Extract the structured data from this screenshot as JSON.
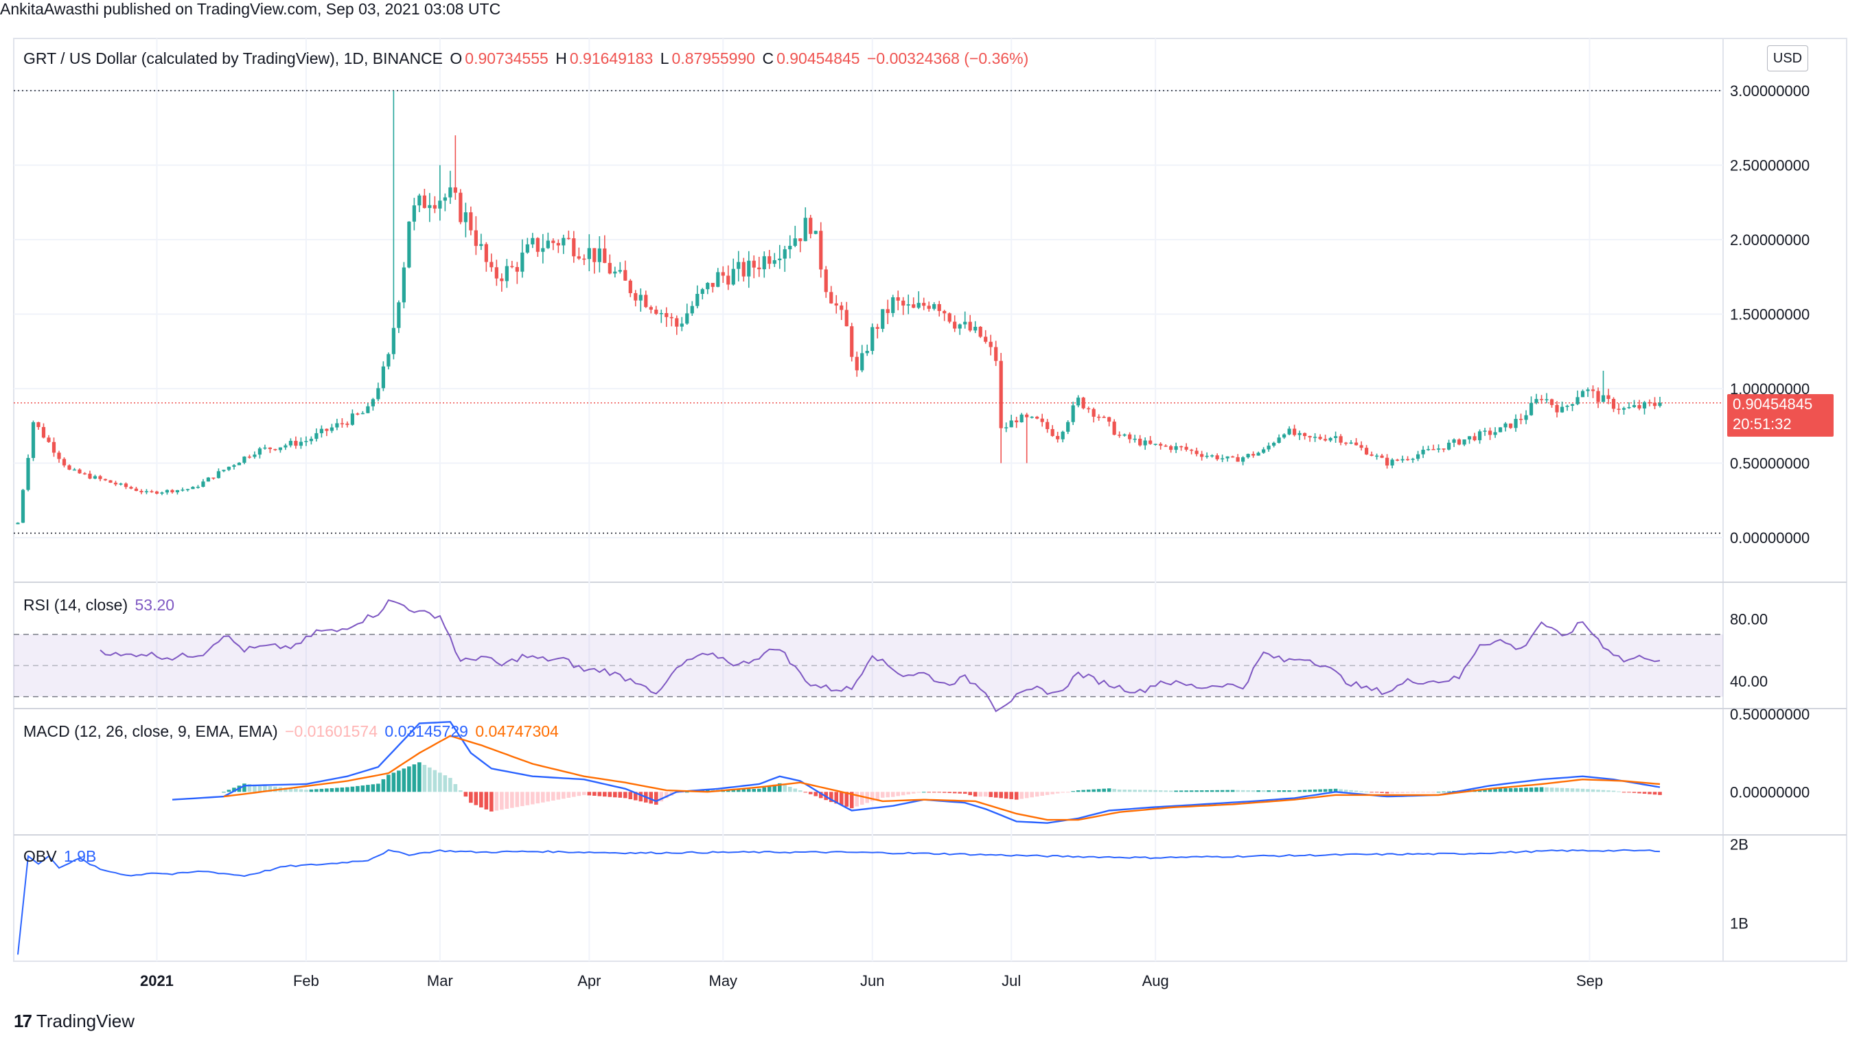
{
  "publisher": "AnkitaAwasthi published on TradingView.com, Sep 03, 2021 03:08 UTC",
  "currency_button": "USD",
  "brand": "TradingView",
  "legend": {
    "symbol": "GRT / US Dollar (calculated by TradingView), 1D, BINANCE",
    "o_label": "O",
    "o_value": "0.90734555",
    "h_label": "H",
    "h_value": "0.91649183",
    "l_label": "L",
    "l_value": "0.87955990",
    "c_label": "C",
    "c_value": "0.90454845",
    "change": "−0.00324368 (−0.36%)"
  },
  "price_tag": {
    "price": "0.90454845",
    "countdown": "20:51:32"
  },
  "colors": {
    "up": "#26a69a",
    "down": "#ef5350",
    "rsi": "#7e57c2",
    "macd": "#2962ff",
    "signal": "#ff6d00",
    "obv": "#2962ff"
  },
  "chart_data": [
    {
      "type": "candlestick",
      "title": "GRT / US Dollar (calculated by TradingView), 1D, BINANCE",
      "x_ticks": [
        "2021",
        "Feb",
        "Mar",
        "Apr",
        "May",
        "Jun",
        "Jul",
        "Aug",
        "Sep"
      ],
      "y_ticks": [
        "3.00000000",
        "2.50000000",
        "2.00000000",
        "1.50000000",
        "1.00000000",
        "0.50000000",
        "0.00000000"
      ],
      "ylim": [
        0,
        3
      ],
      "last_close": 0.90454845,
      "anchors_close": [
        [
          0,
          0.1
        ],
        [
          3,
          0.78
        ],
        [
          10,
          0.45
        ],
        [
          25,
          0.3
        ],
        [
          34,
          0.33
        ],
        [
          46,
          0.58
        ],
        [
          56,
          0.65
        ],
        [
          60,
          0.72
        ],
        [
          68,
          0.85
        ],
        [
          72,
          1.2
        ],
        [
          75,
          1.85
        ],
        [
          76,
          2.15
        ],
        [
          80,
          2.3
        ],
        [
          84,
          2.28
        ],
        [
          88,
          2.1
        ],
        [
          92,
          1.75
        ],
        [
          96,
          1.8
        ],
        [
          100,
          1.95
        ],
        [
          106,
          2.0
        ],
        [
          112,
          1.9
        ],
        [
          118,
          1.7
        ],
        [
          124,
          1.55
        ],
        [
          128,
          1.42
        ],
        [
          132,
          1.6
        ],
        [
          136,
          1.75
        ],
        [
          142,
          1.8
        ],
        [
          148,
          1.95
        ],
        [
          152,
          2.05
        ],
        [
          154,
          2.12
        ],
        [
          157,
          1.7
        ],
        [
          161,
          1.4
        ],
        [
          163,
          1.1
        ],
        [
          166,
          1.38
        ],
        [
          170,
          1.58
        ],
        [
          174,
          1.52
        ],
        [
          178,
          1.6
        ],
        [
          182,
          1.45
        ],
        [
          187,
          1.35
        ],
        [
          190,
          1.2
        ],
        [
          191,
          0.72
        ],
        [
          194,
          0.8
        ],
        [
          198,
          0.78
        ],
        [
          202,
          0.68
        ],
        [
          206,
          0.92
        ],
        [
          210,
          0.82
        ],
        [
          214,
          0.68
        ],
        [
          220,
          0.62
        ],
        [
          226,
          0.6
        ],
        [
          230,
          0.56
        ],
        [
          236,
          0.52
        ],
        [
          242,
          0.58
        ],
        [
          246,
          0.72
        ],
        [
          250,
          0.66
        ],
        [
          256,
          0.68
        ],
        [
          262,
          0.58
        ],
        [
          266,
          0.5
        ],
        [
          270,
          0.54
        ],
        [
          276,
          0.6
        ],
        [
          282,
          0.67
        ],
        [
          288,
          0.72
        ],
        [
          292,
          0.8
        ],
        [
          296,
          0.95
        ],
        [
          300,
          0.85
        ],
        [
          304,
          1.0
        ],
        [
          308,
          0.92
        ],
        [
          312,
          0.86
        ],
        [
          316,
          0.88
        ],
        [
          319,
          0.9
        ]
      ],
      "wick_spikes": [
        [
          73,
          3.0
        ],
        [
          85,
          2.7
        ],
        [
          82,
          2.5
        ],
        [
          191,
          0.5
        ],
        [
          196,
          0.5
        ],
        [
          308,
          1.12
        ]
      ]
    },
    {
      "type": "line",
      "name": "RSI (14, close)",
      "label": "RSI (14, close)",
      "value_label": "53.20",
      "y_ticks": [
        "80.00",
        "40.00"
      ],
      "bands": [
        70,
        50,
        30
      ],
      "ylim": [
        25,
        100
      ],
      "anchors": [
        [
          16,
          60
        ],
        [
          20,
          56
        ],
        [
          24,
          58
        ],
        [
          30,
          55
        ],
        [
          36,
          58
        ],
        [
          40,
          70
        ],
        [
          44,
          60
        ],
        [
          48,
          62
        ],
        [
          54,
          62
        ],
        [
          58,
          72
        ],
        [
          62,
          72
        ],
        [
          66,
          78
        ],
        [
          70,
          84
        ],
        [
          72,
          91
        ],
        [
          74,
          90
        ],
        [
          78,
          84
        ],
        [
          82,
          82
        ],
        [
          84,
          68
        ],
        [
          86,
          52
        ],
        [
          90,
          56
        ],
        [
          94,
          50
        ],
        [
          98,
          56
        ],
        [
          102,
          54
        ],
        [
          106,
          54
        ],
        [
          110,
          47
        ],
        [
          114,
          47
        ],
        [
          118,
          42
        ],
        [
          122,
          38
        ],
        [
          124,
          30
        ],
        [
          128,
          48
        ],
        [
          132,
          56
        ],
        [
          136,
          56
        ],
        [
          140,
          50
        ],
        [
          144,
          56
        ],
        [
          148,
          62
        ],
        [
          150,
          52
        ],
        [
          154,
          38
        ],
        [
          158,
          35
        ],
        [
          162,
          35
        ],
        [
          166,
          58
        ],
        [
          168,
          52
        ],
        [
          172,
          44
        ],
        [
          176,
          45
        ],
        [
          180,
          38
        ],
        [
          184,
          42
        ],
        [
          188,
          34
        ],
        [
          190,
          22
        ],
        [
          194,
          30
        ],
        [
          198,
          35
        ],
        [
          202,
          32
        ],
        [
          206,
          45
        ],
        [
          210,
          40
        ],
        [
          214,
          36
        ],
        [
          218,
          33
        ],
        [
          222,
          40
        ],
        [
          226,
          38
        ],
        [
          230,
          36
        ],
        [
          234,
          38
        ],
        [
          238,
          36
        ],
        [
          242,
          58
        ],
        [
          246,
          53
        ],
        [
          250,
          55
        ],
        [
          254,
          50
        ],
        [
          258,
          40
        ],
        [
          262,
          35
        ],
        [
          266,
          33
        ],
        [
          270,
          40
        ],
        [
          276,
          40
        ],
        [
          280,
          42
        ],
        [
          284,
          64
        ],
        [
          288,
          66
        ],
        [
          292,
          60
        ],
        [
          296,
          78
        ],
        [
          300,
          68
        ],
        [
          304,
          78
        ],
        [
          308,
          63
        ],
        [
          312,
          53
        ],
        [
          316,
          56
        ],
        [
          319,
          53.2
        ]
      ]
    },
    {
      "type": "line",
      "name": "MACD (12, 26, close, 9, EMA, EMA)",
      "label": "MACD (12, 26, close, 9, EMA, EMA)",
      "histogram_label": "−0.01601574",
      "macd_label": "0.03145729",
      "signal_label": "0.04747304",
      "y_ticks": [
        "0.50000000",
        "0.00000000"
      ],
      "ylim": [
        -0.25,
        0.5
      ],
      "macd_anchors": [
        [
          30,
          -0.05
        ],
        [
          40,
          -0.03
        ],
        [
          44,
          0.04
        ],
        [
          56,
          0.05
        ],
        [
          64,
          0.1
        ],
        [
          70,
          0.16
        ],
        [
          74,
          0.3
        ],
        [
          78,
          0.44
        ],
        [
          84,
          0.45
        ],
        [
          88,
          0.25
        ],
        [
          92,
          0.15
        ],
        [
          100,
          0.1
        ],
        [
          110,
          0.08
        ],
        [
          118,
          0.02
        ],
        [
          124,
          -0.06
        ],
        [
          128,
          0.0
        ],
        [
          136,
          0.02
        ],
        [
          144,
          0.05
        ],
        [
          148,
          0.1
        ],
        [
          152,
          0.07
        ],
        [
          158,
          -0.05
        ],
        [
          162,
          -0.12
        ],
        [
          170,
          -0.09
        ],
        [
          176,
          -0.05
        ],
        [
          180,
          -0.06
        ],
        [
          184,
          -0.07
        ],
        [
          188,
          -0.11
        ],
        [
          194,
          -0.19
        ],
        [
          200,
          -0.2
        ],
        [
          206,
          -0.17
        ],
        [
          212,
          -0.12
        ],
        [
          220,
          -0.1
        ],
        [
          230,
          -0.08
        ],
        [
          240,
          -0.06
        ],
        [
          248,
          -0.04
        ],
        [
          256,
          0.0
        ],
        [
          266,
          -0.03
        ],
        [
          276,
          -0.02
        ],
        [
          286,
          0.04
        ],
        [
          296,
          0.08
        ],
        [
          304,
          0.1
        ],
        [
          310,
          0.08
        ],
        [
          319,
          0.03
        ]
      ],
      "signal_anchors": [
        [
          40,
          -0.03
        ],
        [
          52,
          0.02
        ],
        [
          64,
          0.07
        ],
        [
          72,
          0.12
        ],
        [
          78,
          0.25
        ],
        [
          84,
          0.36
        ],
        [
          90,
          0.3
        ],
        [
          100,
          0.18
        ],
        [
          110,
          0.1
        ],
        [
          118,
          0.06
        ],
        [
          126,
          0.01
        ],
        [
          134,
          0.0
        ],
        [
          144,
          0.03
        ],
        [
          152,
          0.06
        ],
        [
          160,
          0.0
        ],
        [
          168,
          -0.06
        ],
        [
          176,
          -0.05
        ],
        [
          186,
          -0.06
        ],
        [
          194,
          -0.14
        ],
        [
          200,
          -0.18
        ],
        [
          206,
          -0.18
        ],
        [
          214,
          -0.13
        ],
        [
          224,
          -0.1
        ],
        [
          236,
          -0.08
        ],
        [
          248,
          -0.05
        ],
        [
          256,
          -0.02
        ],
        [
          266,
          -0.02
        ],
        [
          276,
          -0.02
        ],
        [
          286,
          0.02
        ],
        [
          296,
          0.05
        ],
        [
          304,
          0.08
        ],
        [
          312,
          0.07
        ],
        [
          319,
          0.05
        ]
      ]
    },
    {
      "type": "line",
      "name": "OBV",
      "label": "OBV",
      "value_label": "1.9B",
      "y_ticks": [
        "2B",
        "1B"
      ],
      "ylim": [
        0.55,
        2.05
      ],
      "anchors": [
        [
          0,
          0.6
        ],
        [
          2,
          1.85
        ],
        [
          4,
          1.75
        ],
        [
          6,
          1.85
        ],
        [
          8,
          1.7
        ],
        [
          12,
          1.82
        ],
        [
          16,
          1.68
        ],
        [
          22,
          1.6
        ],
        [
          26,
          1.64
        ],
        [
          30,
          1.62
        ],
        [
          36,
          1.66
        ],
        [
          44,
          1.6
        ],
        [
          52,
          1.72
        ],
        [
          60,
          1.75
        ],
        [
          68,
          1.8
        ],
        [
          72,
          1.92
        ],
        [
          76,
          1.87
        ],
        [
          82,
          1.92
        ],
        [
          90,
          1.9
        ],
        [
          100,
          1.91
        ],
        [
          120,
          1.89
        ],
        [
          140,
          1.9
        ],
        [
          160,
          1.9
        ],
        [
          180,
          1.88
        ],
        [
          200,
          1.85
        ],
        [
          220,
          1.83
        ],
        [
          240,
          1.85
        ],
        [
          260,
          1.87
        ],
        [
          280,
          1.88
        ],
        [
          290,
          1.9
        ],
        [
          300,
          1.92
        ],
        [
          310,
          1.92
        ],
        [
          319,
          1.92
        ]
      ]
    }
  ]
}
